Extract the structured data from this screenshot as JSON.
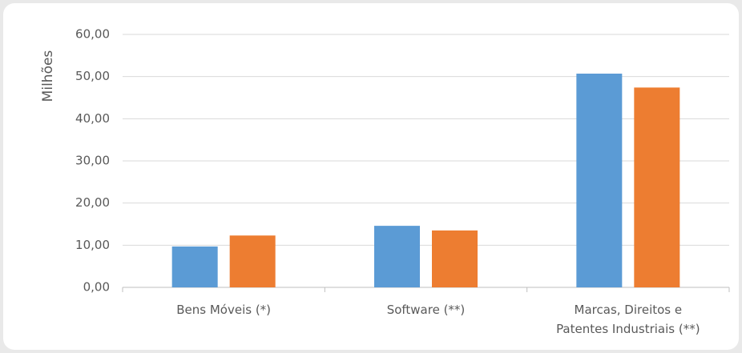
{
  "chart_data": {
    "type": "bar",
    "y_label": "Milhões",
    "categories": [
      "Bens Móveis  (*)",
      "Software (**)",
      "Marcas, Direitos e Patentes Industriais (**)"
    ],
    "series": [
      {
        "color": "#5b9bd5",
        "values": [
          9.7,
          14.6,
          50.7
        ]
      },
      {
        "color": "#ed7d31",
        "values": [
          12.3,
          13.5,
          47.4
        ]
      }
    ],
    "ylim": [
      0,
      60
    ],
    "yticks": [
      {
        "value": 0,
        "label": "0,00"
      },
      {
        "value": 10,
        "label": "10,00"
      },
      {
        "value": 20,
        "label": "20,00"
      },
      {
        "value": 30,
        "label": "30,00"
      },
      {
        "value": 40,
        "label": "40,00"
      },
      {
        "value": 50,
        "label": "50,00"
      },
      {
        "value": 60,
        "label": "60,00"
      }
    ],
    "grid": true
  }
}
